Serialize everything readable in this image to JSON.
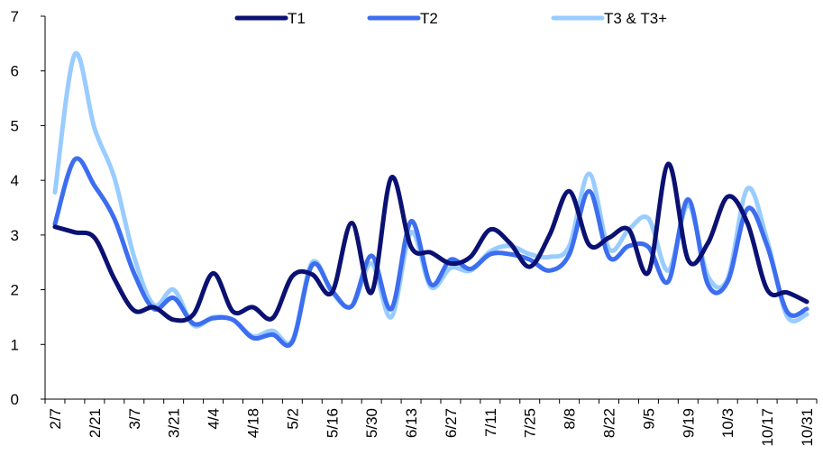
{
  "chart_data": {
    "type": "line",
    "title": "",
    "xlabel": "",
    "ylabel": "",
    "ylim": [
      0,
      7
    ],
    "yticks": [
      "0",
      "1",
      "2",
      "3",
      "4",
      "5",
      "6",
      "7"
    ],
    "categories": [
      "2/7",
      "2/21",
      "3/7",
      "3/21",
      "4/4",
      "4/18",
      "5/2",
      "5/16",
      "5/30",
      "6/13",
      "6/27",
      "7/11",
      "7/25",
      "8/8",
      "8/22",
      "9/5",
      "9/19",
      "10/3",
      "10/17",
      "10/31"
    ],
    "x": [
      "2/7",
      "2/14",
      "2/21",
      "2/28",
      "3/7",
      "3/14",
      "3/21",
      "3/28",
      "4/4",
      "4/11",
      "4/18",
      "4/25",
      "5/2",
      "5/9",
      "5/16",
      "5/23",
      "5/30",
      "6/6",
      "6/13",
      "6/20",
      "6/27",
      "7/4",
      "7/11",
      "7/18",
      "7/25",
      "8/1",
      "8/8",
      "8/15",
      "8/22",
      "8/29",
      "9/5",
      "9/12",
      "9/19",
      "9/26",
      "10/3",
      "10/10",
      "10/17",
      "10/24",
      "10/31"
    ],
    "grid": false,
    "legend_position": "top",
    "series": [
      {
        "name": "T1",
        "color": "#0b1172",
        "values": [
          3.15,
          3.05,
          2.95,
          2.2,
          1.62,
          1.68,
          1.45,
          1.55,
          2.3,
          1.6,
          1.68,
          1.48,
          2.25,
          2.28,
          1.95,
          3.22,
          1.95,
          4.05,
          2.78,
          2.68,
          2.48,
          2.6,
          3.1,
          2.85,
          2.42,
          3.0,
          3.8,
          2.82,
          2.95,
          3.1,
          2.32,
          4.3,
          2.55,
          2.85,
          3.7,
          3.22,
          2.0,
          1.95,
          1.78
        ]
      },
      {
        "name": "T2",
        "color": "#3d6ef0",
        "values": [
          3.2,
          4.38,
          3.9,
          3.3,
          2.3,
          1.65,
          1.85,
          1.38,
          1.48,
          1.45,
          1.12,
          1.18,
          1.05,
          2.45,
          1.98,
          1.7,
          2.62,
          1.65,
          3.25,
          2.1,
          2.55,
          2.38,
          2.65,
          2.65,
          2.55,
          2.35,
          2.65,
          3.8,
          2.6,
          2.8,
          2.78,
          2.15,
          3.65,
          2.1,
          2.15,
          3.48,
          2.8,
          1.6,
          1.65
        ]
      },
      {
        "name": "T3 & T3+",
        "color": "#99ccff",
        "values": [
          3.78,
          6.3,
          4.95,
          4.05,
          2.6,
          1.72,
          2.0,
          1.35,
          1.5,
          1.45,
          1.15,
          1.25,
          1.08,
          2.5,
          1.95,
          1.7,
          2.48,
          1.5,
          3.05,
          2.05,
          2.4,
          2.35,
          2.7,
          2.8,
          2.65,
          2.6,
          2.8,
          4.12,
          2.75,
          3.1,
          3.3,
          2.35,
          3.55,
          2.25,
          2.2,
          3.85,
          2.9,
          1.52,
          1.55
        ]
      }
    ]
  }
}
